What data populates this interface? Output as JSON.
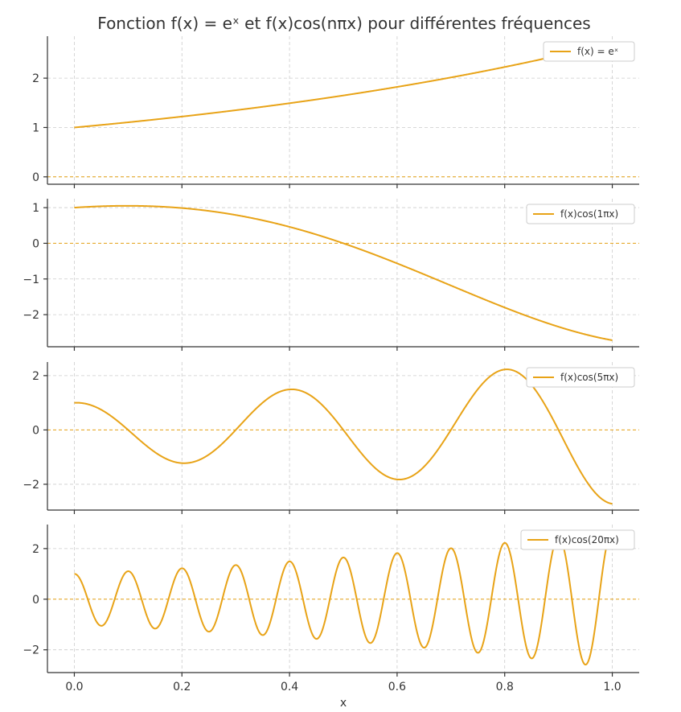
{
  "accent_color": "#E8A317",
  "chart_data": {
    "type": "line",
    "title": "Fonction f(x) = eˣ et f(x)cos(nπx) pour différentes fréquences",
    "xlabel": "x",
    "xlim": [
      -0.05,
      1.05
    ],
    "x_ticks": [
      "0.0",
      "0.2",
      "0.4",
      "0.6",
      "0.8",
      "1.0"
    ],
    "x_tick_values": [
      0.0,
      0.2,
      0.4,
      0.6,
      0.8,
      1.0
    ],
    "x_range": [
      0,
      1
    ],
    "grid": true,
    "legend_placement": "top-right",
    "zero_reference_line": true,
    "panels": [
      {
        "legend": "f(x) = eˣ",
        "formula": "exp",
        "n": 0,
        "ylim": [
          -0.15,
          2.85
        ],
        "y_ticks": [
          "0",
          "1",
          "2"
        ],
        "y_tick_values": [
          0,
          1,
          2
        ]
      },
      {
        "legend": "f(x)cos(1πx)",
        "formula": "exp_cos",
        "n": 1,
        "ylim": [
          -2.9,
          1.25
        ],
        "y_ticks": [
          "−2",
          "−1",
          "0",
          "1"
        ],
        "y_tick_values": [
          -2,
          -1,
          0,
          1
        ]
      },
      {
        "legend": "f(x)cos(5πx)",
        "formula": "exp_cos",
        "n": 5,
        "ylim": [
          -2.95,
          2.5
        ],
        "y_ticks": [
          "−2",
          "0",
          "2"
        ],
        "y_tick_values": [
          -2,
          0,
          2
        ]
      },
      {
        "legend": "f(x)cos(20πx)",
        "formula": "exp_cos",
        "n": 20,
        "ylim": [
          -2.9,
          2.95
        ],
        "y_ticks": [
          "−2",
          "0",
          "2"
        ],
        "y_tick_values": [
          -2,
          0,
          2
        ]
      }
    ]
  }
}
